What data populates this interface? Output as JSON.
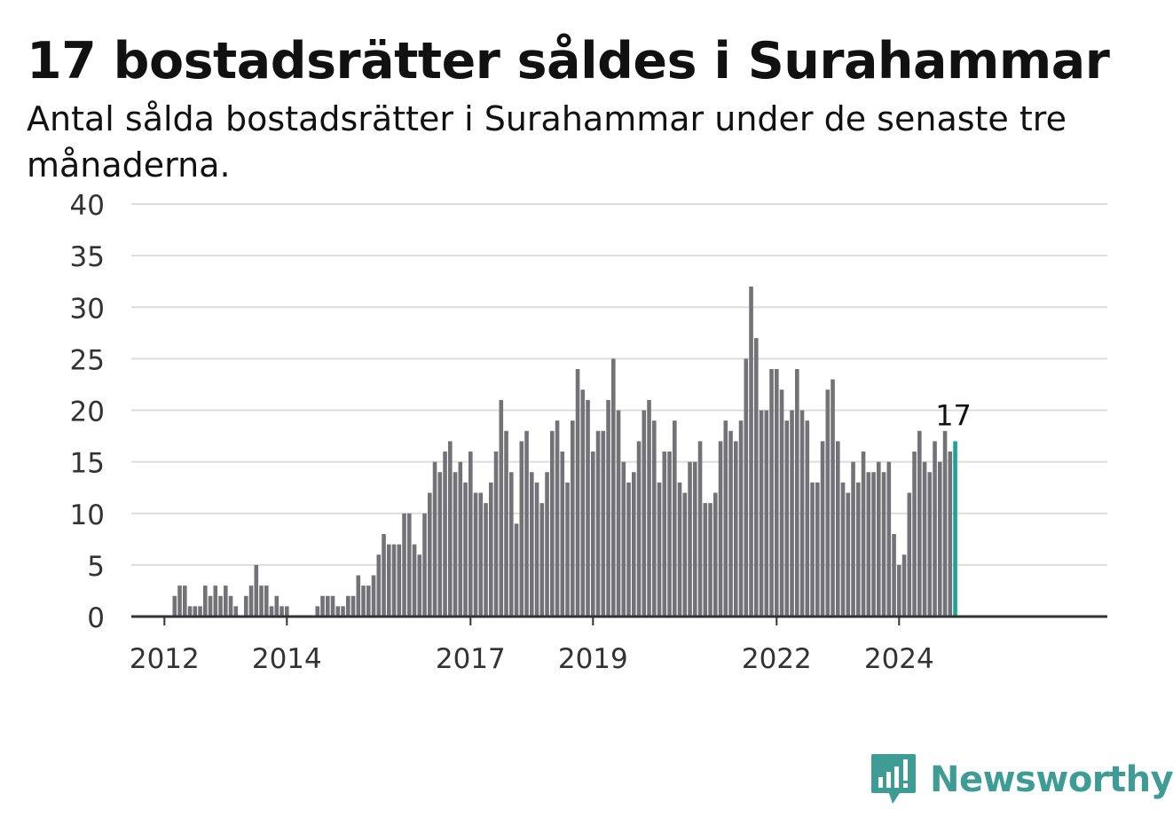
{
  "title": "17 bostadsrätter såldes i Surahammar",
  "subtitle": "Antal sålda bostadsrätter i Surahammar under de senaste tre månaderna.",
  "brand": {
    "name": "Newsworthy",
    "color": "#3e9c94",
    "icon": "newsworthy-logo-icon"
  },
  "colors": {
    "bar": "#737276",
    "highlight": "#1aa59a",
    "grid": "#dddddd",
    "axis": "#333333"
  },
  "chart_data": {
    "type": "bar",
    "title": "17 bostadsrätter såldes i Surahammar",
    "xlabel": "",
    "ylabel": "",
    "ylim": [
      0,
      40
    ],
    "yticks": [
      0,
      5,
      10,
      15,
      20,
      25,
      30,
      35,
      40
    ],
    "xticks": [
      "2012",
      "2014",
      "2017",
      "2019",
      "2022",
      "2024"
    ],
    "grid": true,
    "start_month": "2011-07",
    "highlight_label": "17",
    "values": [
      0,
      0,
      0,
      0,
      0,
      0,
      0,
      0,
      2,
      3,
      3,
      1,
      1,
      1,
      3,
      2,
      3,
      2,
      3,
      2,
      1,
      0,
      2,
      3,
      5,
      3,
      3,
      1,
      2,
      1,
      1,
      0,
      0,
      0,
      0,
      0,
      1,
      2,
      2,
      2,
      1,
      1,
      2,
      2,
      4,
      3,
      3,
      4,
      6,
      8,
      7,
      7,
      7,
      10,
      10,
      7,
      6,
      10,
      12,
      15,
      14,
      16,
      17,
      14,
      15,
      13,
      16,
      12,
      12,
      11,
      13,
      16,
      21,
      18,
      14,
      9,
      17,
      18,
      14,
      13,
      11,
      14,
      18,
      19,
      16,
      13,
      19,
      24,
      22,
      21,
      16,
      18,
      18,
      21,
      25,
      20,
      15,
      13,
      14,
      17,
      20,
      21,
      19,
      13,
      16,
      16,
      19,
      13,
      12,
      15,
      15,
      17,
      11,
      11,
      12,
      17,
      19,
      18,
      17,
      19,
      25,
      32,
      27,
      20,
      20,
      24,
      24,
      22,
      19,
      20,
      24,
      20,
      19,
      13,
      13,
      17,
      22,
      23,
      17,
      13,
      12,
      15,
      13,
      16,
      14,
      14,
      15,
      14,
      15,
      8,
      5,
      6,
      12,
      16,
      18,
      15,
      14,
      17,
      15,
      18,
      16,
      17
    ]
  }
}
